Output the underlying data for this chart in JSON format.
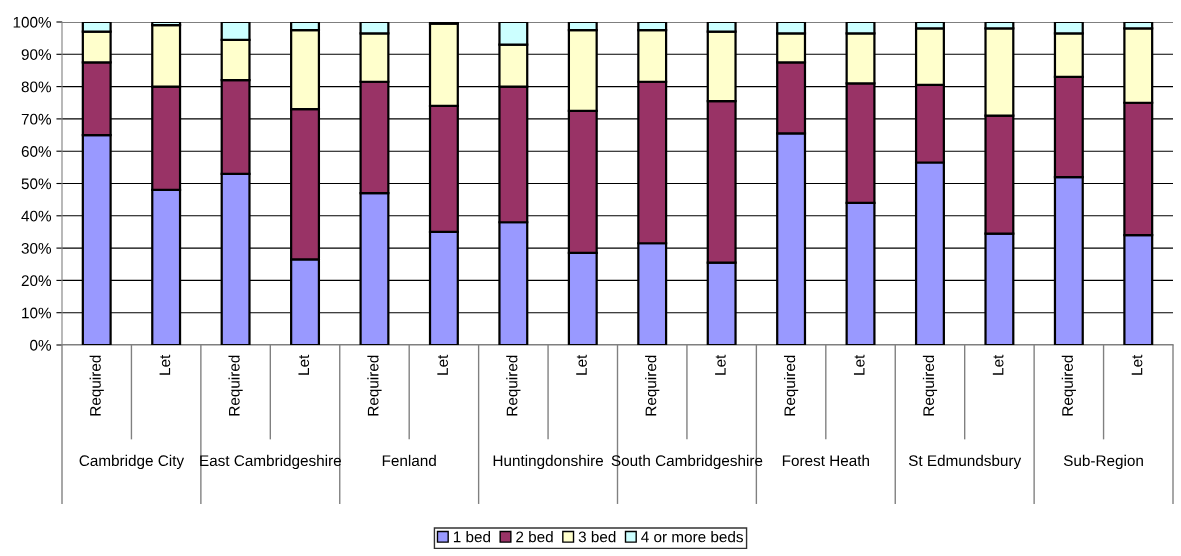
{
  "chart_data": {
    "type": "bar",
    "stacked": true,
    "categories": [
      "Required",
      "Let",
      "Required",
      "Let",
      "Required",
      "Let",
      "Required",
      "Let",
      "Required",
      "Let",
      "Required",
      "Let",
      "Required",
      "Let",
      "Required",
      "Let"
    ],
    "annotations": [
      "Cambridge City",
      "East Cambridgeshire",
      "Fenland",
      "Huntingdonshire",
      "South Cambridgeshire",
      "Forest Heath",
      "St Edmundsbury",
      "Sub-Region"
    ],
    "series": [
      {
        "name": "1 bed",
        "color": "#9999ff",
        "values": [
          65,
          48,
          53,
          26.5,
          47,
          35,
          38,
          28.5,
          31.5,
          25.5,
          65.5,
          44,
          56.5,
          34.5,
          52,
          34
        ]
      },
      {
        "name": "2 bed",
        "color": "#993366",
        "values": [
          22.5,
          32,
          29,
          46.5,
          34.5,
          39,
          42,
          44,
          50,
          50,
          22,
          37,
          24,
          36.5,
          31,
          41
        ]
      },
      {
        "name": "3 bed",
        "color": "#ffffcc",
        "values": [
          9.5,
          19,
          12.5,
          24.5,
          15,
          25.5,
          13,
          25,
          16,
          21.5,
          9,
          15.5,
          17.5,
          27,
          13.5,
          23
        ]
      },
      {
        "name": "4 or more beds",
        "color": "#ccffff",
        "values": [
          3,
          1,
          5.5,
          2.5,
          3.5,
          0.5,
          7,
          2.5,
          2.5,
          3,
          3.5,
          3.5,
          2,
          2,
          3.5,
          2
        ]
      }
    ],
    "ylim": [
      0,
      100
    ],
    "yticks": [
      {
        "value": 0,
        "label": "0%"
      },
      {
        "value": 10,
        "label": "10%"
      },
      {
        "value": 20,
        "label": "20%"
      },
      {
        "value": 30,
        "label": "30%"
      },
      {
        "value": 40,
        "label": "40%"
      },
      {
        "value": 50,
        "label": "50%"
      },
      {
        "value": 60,
        "label": "60%"
      },
      {
        "value": 70,
        "label": "70%"
      },
      {
        "value": 80,
        "label": "80%"
      },
      {
        "value": 90,
        "label": "90%"
      },
      {
        "value": 100,
        "label": "100%"
      }
    ],
    "grid": "y",
    "legend": "bottom"
  }
}
